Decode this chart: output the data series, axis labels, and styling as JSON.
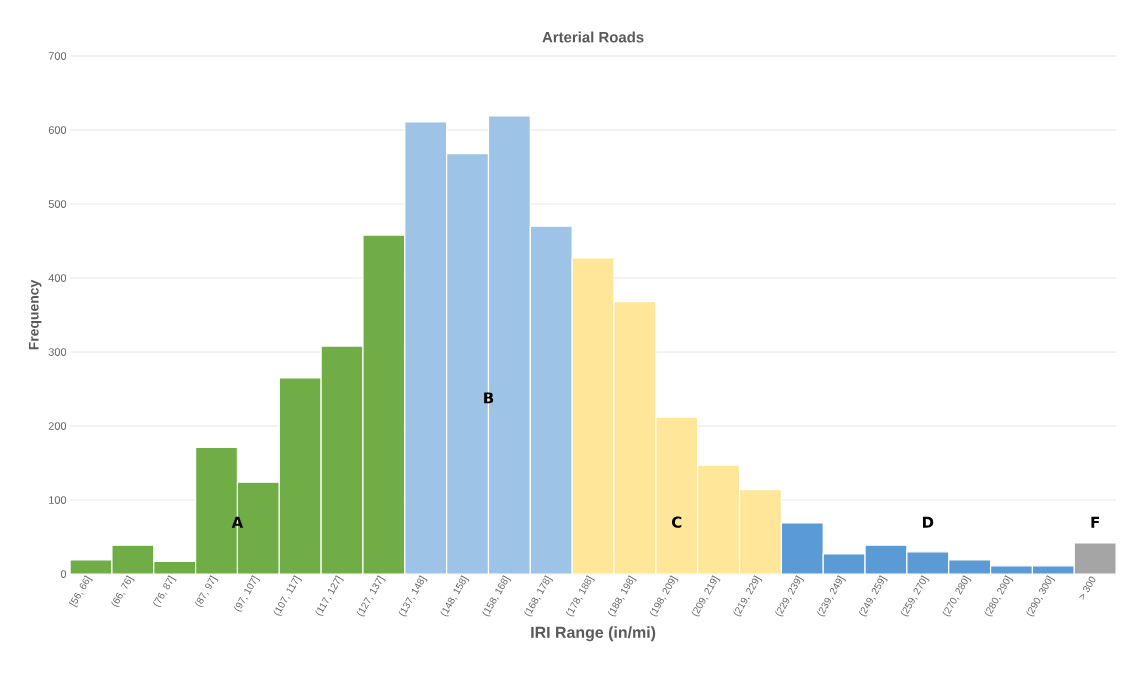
{
  "chart_data": {
    "type": "bar",
    "title": "Arterial Roads",
    "xlabel": "IRI Range (in/mi)",
    "ylabel": "Frequency",
    "categories": [
      "[56, 66]",
      "(66, 76]",
      "(76, 87]",
      "(87, 97]",
      "(97, 107]",
      "(107, 117]",
      "(117, 127]",
      "(127, 137]",
      "(137, 148]",
      "(148, 158]",
      "(158, 168]",
      "(168, 178]",
      "(178, 188]",
      "(188, 198]",
      "(198, 209]",
      "(209, 219]",
      "(219, 229]",
      "(229, 239]",
      "(239, 249]",
      "(249, 259]",
      "(259, 270]",
      "(270, 280]",
      "(280, 290]",
      "(290, 300]",
      "> 300"
    ],
    "values": [
      19,
      39,
      17,
      171,
      124,
      265,
      308,
      458,
      611,
      568,
      619,
      470,
      427,
      368,
      212,
      147,
      114,
      69,
      27,
      39,
      30,
      19,
      11,
      11,
      42
    ],
    "colors": [
      "#70ad47",
      "#70ad47",
      "#70ad47",
      "#70ad47",
      "#70ad47",
      "#70ad47",
      "#70ad47",
      "#70ad47",
      "#9dc3e6",
      "#9dc3e6",
      "#9dc3e6",
      "#9dc3e6",
      "#ffe699",
      "#ffe699",
      "#ffe699",
      "#ffe699",
      "#ffe699",
      "#5b9bd5",
      "#5b9bd5",
      "#5b9bd5",
      "#5b9bd5",
      "#5b9bd5",
      "#5b9bd5",
      "#5b9bd5",
      "#a5a5a5"
    ],
    "ylim": [
      0,
      700
    ],
    "yticks": [
      0,
      100,
      200,
      300,
      400,
      500,
      600,
      700
    ],
    "grid": "y",
    "annotations": [
      "A",
      "B",
      "C",
      "D",
      "F"
    ]
  }
}
